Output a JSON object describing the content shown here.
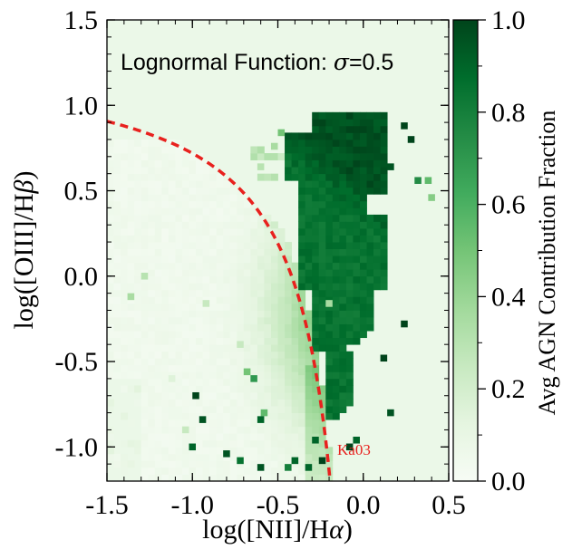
{
  "chart_data": {
    "type": "heatmap",
    "title": "Lognormal Function: σ=0.5",
    "title_prefix": "Lognormal Function: ",
    "title_sigma": "σ",
    "title_value": "=0.5",
    "xlabel": "log([NII]/Hα)",
    "xlabel_prefix": "log([NII]/H",
    "xlabel_greek": "α",
    "xlabel_suffix": ")",
    "ylabel": "log([OIII]/Hβ)",
    "ylabel_prefix": "log([OIII]/H",
    "ylabel_greek": "β",
    "ylabel_suffix": ")",
    "xlim": [
      -1.5,
      0.5
    ],
    "ylim": [
      -1.2,
      1.5
    ],
    "x_ticks": [
      -1.5,
      -1.0,
      -0.5,
      0.0,
      0.5
    ],
    "x_tick_labels": [
      "-1.5",
      "-1.0",
      "-0.5",
      "0.0",
      "0.5"
    ],
    "y_ticks": [
      -1.0,
      -0.5,
      0.0,
      0.5,
      1.0,
      1.5
    ],
    "y_tick_labels": [
      "-1.0",
      "-0.5",
      "0.0",
      "0.5",
      "1.0",
      "1.5"
    ],
    "bin_size": 0.04,
    "colorbar": {
      "label": "Avg AGN Contribution Fraction",
      "range": [
        0.0,
        1.0
      ],
      "ticks": [
        0.0,
        0.2,
        0.4,
        0.6,
        0.8,
        1.0
      ],
      "tick_labels": [
        "0.0",
        "0.2",
        "0.4",
        "0.6",
        "0.8",
        "1.0"
      ],
      "colormap": "Greens",
      "stops": [
        "#f7fcf5",
        "#e5f5e0",
        "#c7e9c0",
        "#a1d99b",
        "#74c476",
        "#41ab5d",
        "#238b45",
        "#006d2c",
        "#00441b"
      ]
    },
    "background_value": 0.08,
    "curve": {
      "name": "Ka03",
      "label": "Ka03",
      "color": "#e8211e",
      "style": "dashed",
      "equation": "0.61/(x-0.05)+1.3",
      "x_range": [
        -1.5,
        -0.18
      ]
    },
    "isolated_points": [
      {
        "x": -1.0,
        "y": -0.72,
        "v": 1.0
      },
      {
        "x": -0.96,
        "y": -0.86,
        "v": 0.95
      },
      {
        "x": -1.02,
        "y": -1.02,
        "v": 0.9
      },
      {
        "x": -0.6,
        "y": -0.82,
        "v": 0.55
      },
      {
        "x": -0.62,
        "y": -0.86,
        "v": 0.9
      },
      {
        "x": -0.66,
        "y": -0.62,
        "v": 0.7
      },
      {
        "x": -0.7,
        "y": -0.58,
        "v": 0.5
      },
      {
        "x": -0.82,
        "y": -1.06,
        "v": 0.95
      },
      {
        "x": -0.74,
        "y": -1.1,
        "v": 0.85
      },
      {
        "x": -0.62,
        "y": -1.14,
        "v": 0.95
      },
      {
        "x": -0.22,
        "y": -0.18,
        "v": 0.35
      },
      {
        "x": -1.38,
        "y": -0.14,
        "v": 0.35
      },
      {
        "x": -1.3,
        "y": -0.02,
        "v": 0.3
      },
      {
        "x": -0.94,
        "y": -0.18,
        "v": 0.25
      },
      {
        "x": -0.5,
        "y": 0.82,
        "v": 0.5
      },
      {
        "x": -0.54,
        "y": 0.74,
        "v": 0.35
      },
      {
        "x": -0.62,
        "y": 0.62,
        "v": 0.3
      },
      {
        "x": 0.14,
        "y": 0.62,
        "v": 0.95
      },
      {
        "x": 0.22,
        "y": 0.86,
        "v": 1.0
      },
      {
        "x": 0.26,
        "y": 0.78,
        "v": 1.0
      },
      {
        "x": 0.3,
        "y": 0.54,
        "v": 0.75
      },
      {
        "x": 0.36,
        "y": 0.54,
        "v": 0.55
      },
      {
        "x": 0.38,
        "y": 0.44,
        "v": 0.45
      },
      {
        "x": 0.22,
        "y": -0.3,
        "v": 1.0
      },
      {
        "x": 0.1,
        "y": -0.5,
        "v": 1.0
      },
      {
        "x": 0.14,
        "y": -0.82,
        "v": 0.95
      },
      {
        "x": -0.1,
        "y": -1.02,
        "v": 1.0
      },
      {
        "x": -0.06,
        "y": -0.98,
        "v": 0.9
      },
      {
        "x": -0.3,
        "y": -0.98,
        "v": 0.9
      },
      {
        "x": -0.26,
        "y": -1.1,
        "v": 1.0
      },
      {
        "x": -0.34,
        "y": -1.14,
        "v": 0.9
      },
      {
        "x": -0.42,
        "y": -1.1,
        "v": 0.9
      },
      {
        "x": -0.46,
        "y": -1.14,
        "v": 0.8
      },
      {
        "x": -0.38,
        "y": -0.58,
        "v": 0.3
      },
      {
        "x": -1.06,
        "y": -0.92,
        "v": 0.25
      },
      {
        "x": -0.74,
        "y": -0.42,
        "v": 0.25
      },
      {
        "x": -1.14,
        "y": -0.62,
        "v": 0.15
      }
    ]
  }
}
